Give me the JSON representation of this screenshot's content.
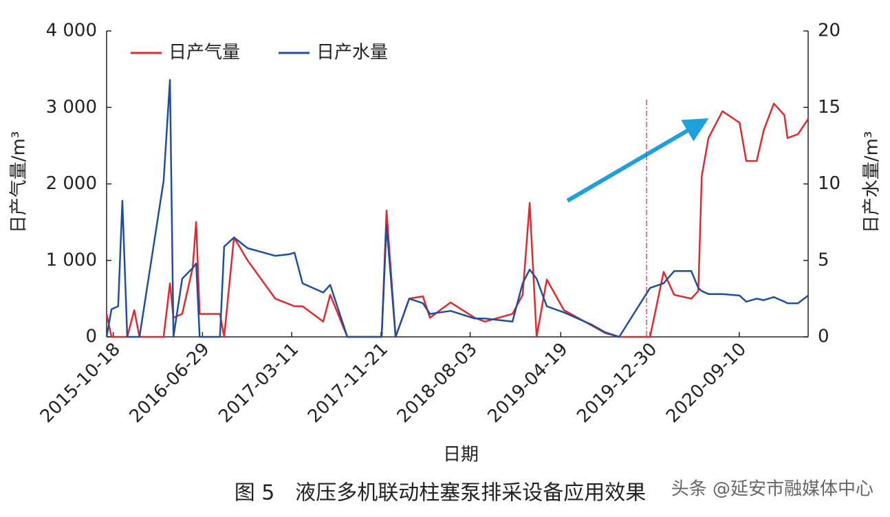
{
  "chart_data": {
    "type": "line",
    "xlabel": "日期",
    "ylabel": "日产气量/m³",
    "y2label": "日产水量/m³",
    "caption": "图 5　液压多机联动柱塞泵排采设备应用效果",
    "watermark": "头条 @延安市融媒体中心",
    "legend": "top-left",
    "x": [
      "2015-09-29",
      "2015-10-13",
      "2015-11-01",
      "2015-11-13",
      "2015-11-27",
      "2015-12-17",
      "2016-01-01",
      "2016-03-10",
      "2016-03-28",
      "2016-04-07",
      "2016-05-02",
      "2016-06-01",
      "2016-06-11",
      "2016-06-21",
      "2016-08-18",
      "2016-08-30",
      "2016-09-27",
      "2016-11-05",
      "2017-01-23",
      "2017-03-03",
      "2017-03-19",
      "2017-04-11",
      "2017-06-09",
      "2017-06-29",
      "2017-08-17",
      "2017-11-23",
      "2017-12-07",
      "2018-01-02",
      "2018-02-10",
      "2018-03-21",
      "2018-04-10",
      "2018-06-08",
      "2018-08-16",
      "2018-09-14",
      "2018-12-02",
      "2018-12-31",
      "2019-01-20",
      "2019-02-09",
      "2019-03-10",
      "2019-04-28",
      "2019-07-16",
      "2019-08-24",
      "2019-10-03",
      "2019-12-30",
      "2020-02-07",
      "2020-03-08",
      "2020-04-26",
      "2020-05-16",
      "2020-05-26",
      "2020-06-14",
      "2020-07-24",
      "2020-09-11",
      "2020-09-30",
      "2020-10-30",
      "2020-11-19",
      "2020-12-18",
      "2021-01-17",
      "2021-01-26",
      "2021-02-25",
      "2021-03-26"
    ],
    "series": [
      {
        "name": "日产气量",
        "color": "#e0282e",
        "axis": "y",
        "values": [
          300,
          0,
          0,
          0,
          0,
          350,
          0,
          0,
          700,
          250,
          300,
          900,
          1500,
          300,
          300,
          0,
          1300,
          1000,
          500,
          430,
          400,
          400,
          200,
          550,
          0,
          0,
          1650,
          0,
          500,
          530,
          250,
          450,
          250,
          200,
          300,
          550,
          1750,
          0,
          750,
          350,
          150,
          50,
          0,
          0,
          850,
          550,
          500,
          600,
          2100,
          2600,
          2950,
          2800,
          2300,
          2300,
          2700,
          3050,
          2900,
          2600,
          2650,
          2850
        ]
      },
      {
        "name": "日产水量",
        "color": "#1f4e9c",
        "axis": "y2",
        "values": [
          0,
          1.8,
          2,
          8.9,
          0,
          0,
          0,
          10.2,
          16.8,
          0,
          3.8,
          4.5,
          4.8,
          0,
          0,
          5.9,
          6.5,
          5.8,
          5.3,
          5.4,
          5.5,
          3.5,
          2.9,
          3.4,
          0,
          0,
          7.3,
          0,
          2.5,
          2.2,
          1.5,
          1.7,
          1.2,
          1.2,
          1.0,
          3.5,
          4.4,
          3.8,
          2.0,
          1.6,
          0.8,
          0.3,
          0,
          3.2,
          3.5,
          4.3,
          4.3,
          3.2,
          3.0,
          2.8,
          2.8,
          2.7,
          2.3,
          2.5,
          2.4,
          2.6,
          2.3,
          2.2,
          2.2,
          2.7
        ]
      }
    ],
    "xlim": [
      "2015-09-29",
      "2021-03-26"
    ],
    "xticks": [
      "2015-10-18",
      "2016-06-29",
      "2017-03-11",
      "2017-11-21",
      "2018-08-03",
      "2019-04-19",
      "2019-12-30",
      "2020-09-10"
    ],
    "ylim": [
      0,
      4000
    ],
    "yticks": [
      0,
      {
        "value": 1000,
        "label": "1 000"
      },
      {
        "value": 2000,
        "label": "2 000"
      },
      {
        "value": 3000,
        "label": "3 000"
      },
      {
        "value": 4000,
        "label": "4 000"
      }
    ],
    "y2lim": [
      0,
      20
    ],
    "y2ticks": [
      0,
      5,
      10,
      15,
      20
    ],
    "vline": "2019-12-20"
  }
}
